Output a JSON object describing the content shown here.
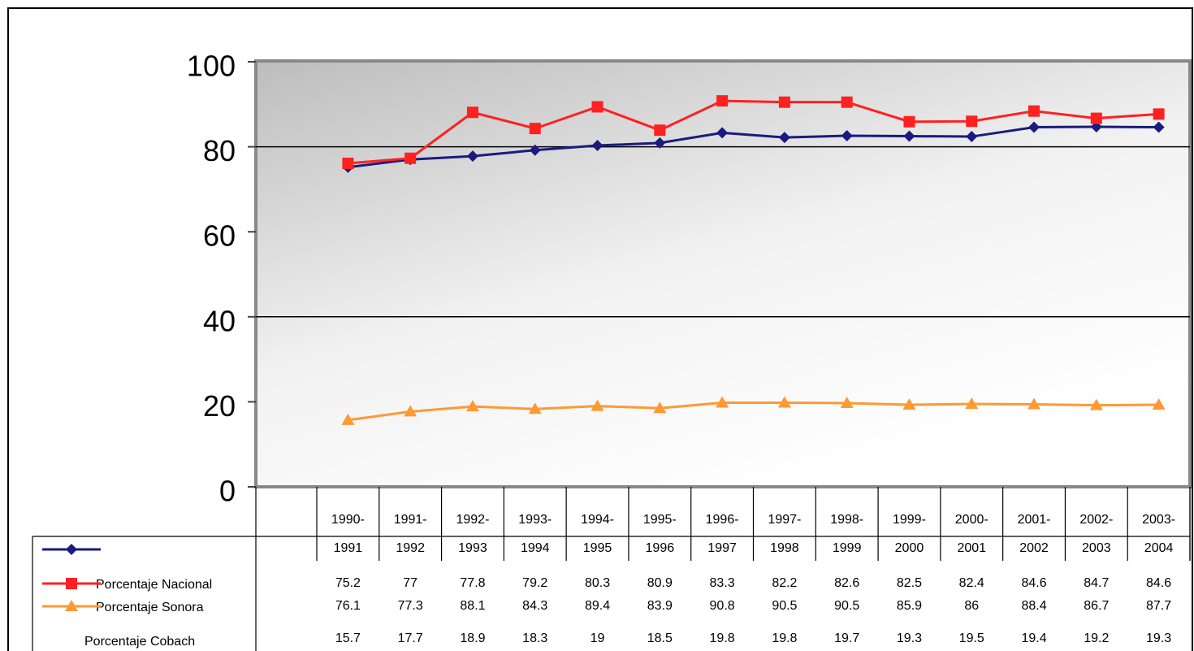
{
  "chart_data": {
    "type": "line",
    "categories": [
      "1990-\n1991",
      "1991-\n1992",
      "1992-\n1993",
      "1993-\n1994",
      "1994-\n1995",
      "1995-\n1996",
      "1996-\n1997",
      "1997-\n1998",
      "1998-\n1999",
      "1999-\n2000",
      "2000-\n2001",
      "2001-\n2002",
      "2002-\n2003",
      "2003-\n2004"
    ],
    "series": [
      {
        "name": "Porcentaje Nacional",
        "color": "#1a1a80",
        "marker": "diamond",
        "values": [
          75.2,
          77,
          77.8,
          79.2,
          80.3,
          80.9,
          83.3,
          82.2,
          82.6,
          82.5,
          82.4,
          84.6,
          84.7,
          84.6
        ]
      },
      {
        "name": "Porcentaje Sonora",
        "color": "#ff2020",
        "marker": "square",
        "values": [
          76.1,
          77.3,
          88.1,
          84.3,
          89.4,
          83.9,
          90.8,
          90.5,
          90.5,
          85.9,
          86,
          88.4,
          86.7,
          87.7
        ]
      },
      {
        "name": "Porcentaje Cobach",
        "color": "#ff9933",
        "marker": "triangle",
        "values": [
          15.7,
          17.7,
          18.9,
          18.3,
          19,
          18.5,
          19.8,
          19.8,
          19.7,
          19.3,
          19.5,
          19.4,
          19.2,
          19.3
        ]
      }
    ],
    "ylim": [
      0,
      100
    ],
    "yticks": [
      0,
      20,
      40,
      60,
      80,
      100
    ],
    "grid_lines": [
      40,
      80
    ],
    "data_table": true
  }
}
